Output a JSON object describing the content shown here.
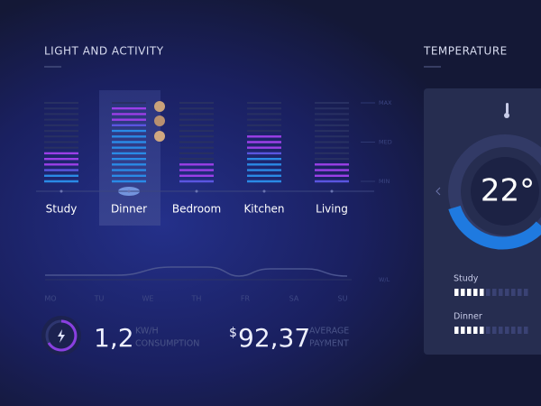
{
  "light_activity": {
    "title": "LIGHT AND ACTIVITY",
    "scale_labels": [
      "MAX",
      "MED",
      "MIN"
    ],
    "rooms": [
      {
        "name": "Study",
        "level": 6
      },
      {
        "name": "Dinner",
        "level": 14
      },
      {
        "name": "Bedroom",
        "level": 4
      },
      {
        "name": "Kitchen",
        "level": 9
      },
      {
        "name": "Living",
        "level": 4
      }
    ],
    "stripes": 15,
    "week_label": "W/L",
    "days": [
      "MO",
      "TU",
      "WE",
      "TH",
      "FR",
      "SA",
      "SU"
    ]
  },
  "summary": {
    "consumption": {
      "value": "1,2",
      "unit": "KW/H",
      "label": "CONSUMPTION"
    },
    "payment": {
      "currency": "$",
      "value": "92,37",
      "label1": "AVERAGE",
      "label2": "PAYMENT"
    }
  },
  "temperature": {
    "title": "TEMPERATURE",
    "value": "22°",
    "rooms": [
      {
        "name": "Study",
        "level": 5
      },
      {
        "name": "Dinner",
        "level": 5
      }
    ],
    "segments": 12
  }
}
